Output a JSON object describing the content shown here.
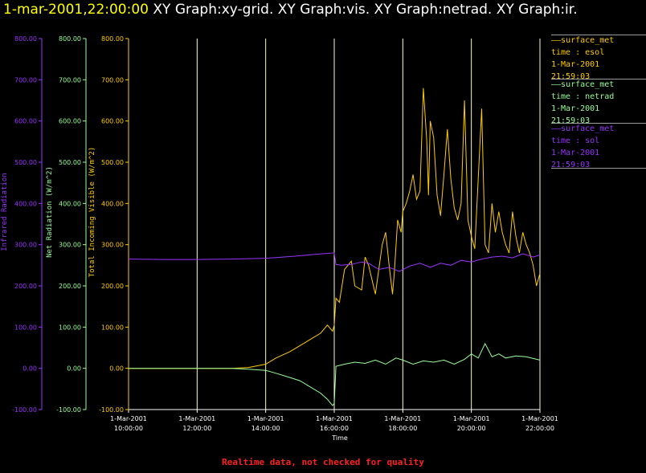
{
  "header": {
    "timestamp": "1-mar-2001,22:00:00",
    "graphs": [
      "XY Graph:xy-grid.",
      "XY Graph:vis.",
      "XY Graph:netrad.",
      "XY Graph:ir."
    ]
  },
  "colors": {
    "visible": "#ffcc00",
    "netrad": "#99ff99",
    "ir": "#9933ff",
    "grid": "#ffffcc",
    "footer": "#ff2020",
    "background": "#000000"
  },
  "legend": [
    {
      "name": "surface_met",
      "var": "time : esol",
      "date": "1-Mar-2001",
      "time": "21:59:03",
      "color": "#ffcc00"
    },
    {
      "name": "surface_met",
      "var": "time : netrad",
      "date": "1-Mar-2001",
      "time": "21:59:03",
      "color": "#99ff99"
    },
    {
      "name": "surface_met",
      "var": "time : sol",
      "date": "1-Mar-2001",
      "time": "21:59:03",
      "color": "#9933ff"
    }
  ],
  "footer": "Realtime data, not checked for quality",
  "chart_data": {
    "type": "line",
    "xlabel": "Time",
    "x_ticks": [
      {
        "date": "1-Mar-2001",
        "time": "10:00:00",
        "hour": 10
      },
      {
        "date": "1-Mar-2001",
        "time": "12:00:00",
        "hour": 12
      },
      {
        "date": "1-Mar-2001",
        "time": "14:00:00",
        "hour": 14
      },
      {
        "date": "1-Mar-2001",
        "time": "16:00:00",
        "hour": 16
      },
      {
        "date": "1-Mar-2001",
        "time": "18:00:00",
        "hour": 18
      },
      {
        "date": "1-Mar-2001",
        "time": "20:00:00",
        "hour": 20
      },
      {
        "date": "1-Mar-2001",
        "time": "22:00:00",
        "hour": 22
      }
    ],
    "xlim": [
      10,
      22
    ],
    "grid": true,
    "axes": [
      {
        "id": "ir",
        "label": "Infrared Radiation",
        "color": "#9933ff",
        "ylim": [
          -100,
          800
        ],
        "ticks": [
          "-100.00",
          "0.00",
          "100.00",
          "200.00",
          "300.00",
          "400.00",
          "500.00",
          "600.00",
          "700.00",
          "800.00"
        ]
      },
      {
        "id": "netrad",
        "label": "Net Radiation (W/m^2)",
        "color": "#99ff99",
        "ylim": [
          -100,
          800
        ],
        "ticks": [
          "-100.00",
          "0.00",
          "100.00",
          "200.00",
          "300.00",
          "400.00",
          "500.00",
          "600.00",
          "700.00",
          "800.00"
        ]
      },
      {
        "id": "visible",
        "label": "Total Incoming Visible (W/m^2)",
        "color": "#ffcc00",
        "ylim": [
          -100,
          800
        ],
        "ticks": [
          "-100.00",
          "0.00",
          "100.00",
          "200.00",
          "300.00",
          "400.00",
          "500.00",
          "600.00",
          "700.00",
          "800.00"
        ]
      }
    ],
    "series": [
      {
        "axis": "visible",
        "color": "#ffcc00",
        "x": [
          10,
          11,
          12,
          13,
          13.5,
          14,
          14.3,
          14.7,
          15,
          15.3,
          15.6,
          15.8,
          15.95,
          16.0,
          16.05,
          16.15,
          16.3,
          16.5,
          16.6,
          16.8,
          16.9,
          17.0,
          17.2,
          17.4,
          17.5,
          17.6,
          17.7,
          17.75,
          17.85,
          17.95,
          18.0,
          18.1,
          18.2,
          18.3,
          18.4,
          18.5,
          18.6,
          18.7,
          18.75,
          18.8,
          18.9,
          19.0,
          19.1,
          19.2,
          19.3,
          19.4,
          19.5,
          19.6,
          19.7,
          19.8,
          19.9,
          20.0,
          20.1,
          20.2,
          20.3,
          20.4,
          20.5,
          20.6,
          20.7,
          20.8,
          20.9,
          21.0,
          21.1,
          21.2,
          21.3,
          21.4,
          21.5,
          21.6,
          21.7,
          21.8,
          21.9,
          22.0
        ],
        "y": [
          0,
          0,
          0,
          0,
          2,
          10,
          25,
          40,
          55,
          70,
          85,
          105,
          90,
          105,
          170,
          160,
          240,
          260,
          200,
          190,
          270,
          250,
          180,
          300,
          330,
          250,
          180,
          230,
          360,
          330,
          380,
          400,
          430,
          470,
          410,
          430,
          680,
          550,
          420,
          600,
          560,
          420,
          370,
          470,
          580,
          460,
          390,
          360,
          400,
          650,
          360,
          320,
          290,
          460,
          630,
          300,
          280,
          400,
          330,
          380,
          330,
          300,
          280,
          380,
          320,
          280,
          330,
          300,
          280,
          250,
          200,
          230
        ]
      },
      {
        "axis": "netrad",
        "color": "#99ff99",
        "x": [
          10,
          11,
          12,
          13,
          13.5,
          14,
          14.3,
          14.7,
          15,
          15.3,
          15.6,
          15.8,
          15.95,
          16.0,
          16.05,
          16.3,
          16.6,
          16.9,
          17.2,
          17.5,
          17.8,
          18.0,
          18.3,
          18.6,
          18.9,
          19.2,
          19.5,
          19.8,
          20.0,
          20.2,
          20.4,
          20.6,
          20.8,
          21.0,
          21.3,
          21.6,
          21.9,
          22.0
        ],
        "y": [
          0,
          0,
          0,
          0,
          -2,
          -5,
          -12,
          -22,
          -30,
          -45,
          -60,
          -75,
          -90,
          -85,
          5,
          10,
          15,
          12,
          20,
          10,
          25,
          20,
          10,
          18,
          15,
          20,
          10,
          22,
          35,
          25,
          60,
          28,
          35,
          25,
          30,
          28,
          22,
          20
        ]
      },
      {
        "axis": "ir",
        "color": "#9933ff",
        "x": [
          10,
          11,
          12,
          13,
          14,
          14.5,
          15,
          15.5,
          16,
          16.05,
          16.2,
          16.5,
          16.8,
          17,
          17.3,
          17.6,
          17.9,
          18.2,
          18.5,
          18.8,
          19.1,
          19.4,
          19.7,
          20,
          20.3,
          20.6,
          20.9,
          21.2,
          21.5,
          21.8,
          22
        ],
        "y": [
          265,
          264,
          264,
          265,
          267,
          270,
          273,
          277,
          280,
          252,
          250,
          252,
          258,
          255,
          240,
          245,
          235,
          248,
          255,
          245,
          255,
          250,
          262,
          258,
          265,
          270,
          272,
          268,
          278,
          270,
          275
        ]
      }
    ]
  }
}
